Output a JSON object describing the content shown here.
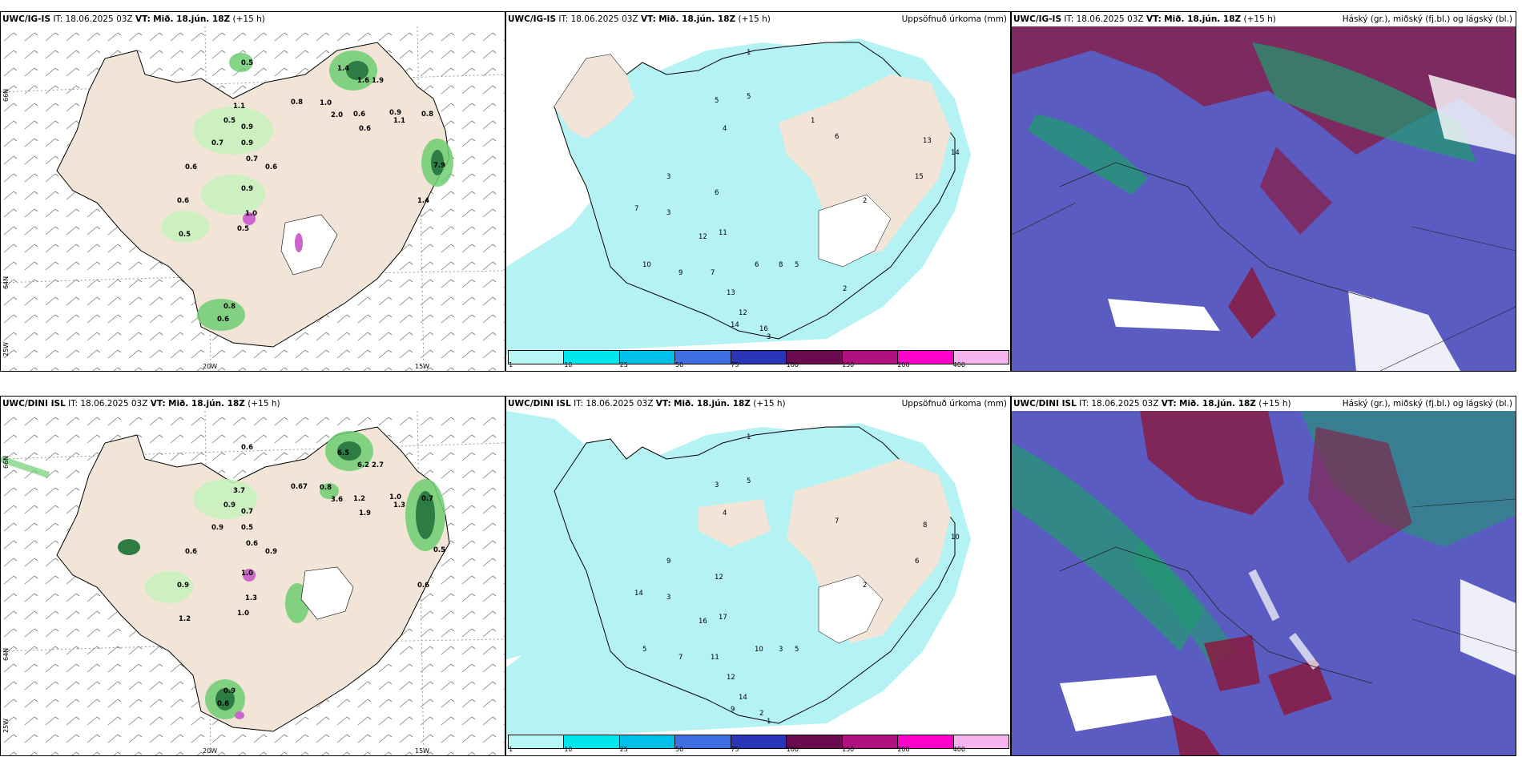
{
  "rows": [
    {
      "model": "UWC/IG-IS",
      "it_label": "IT:",
      "it_value": "18.06.2025 03Z",
      "vt_label": "VT:",
      "vt_value": "Mið. 18.jún. 18Z",
      "lead": "(+15 h)",
      "wind_values": [
        "0.5",
        "1.4",
        "1.6",
        "1.9",
        "1.0",
        "0.8",
        "1.1",
        "2.0",
        "0.6",
        "0.9",
        "0.8",
        "0.5",
        "0.6",
        "0.9",
        "1.1",
        "0.7",
        "0.9",
        "0.7",
        "0.6",
        "0.6",
        "7.9",
        "1.4",
        "0.6",
        "0.9",
        "1.0",
        "0.5",
        "0.5",
        "0.8",
        "0.6"
      ],
      "precip_values": [
        "1",
        "5",
        "5",
        "4",
        "6",
        "3",
        "6",
        "7",
        "12",
        "11",
        "13",
        "14",
        "15",
        "2",
        "3",
        "10",
        "9",
        "7",
        "6",
        "13",
        "12",
        "14",
        "16",
        "8",
        "5",
        "3",
        "2",
        "1"
      ],
      "lon_labels": [
        "20W",
        "15W"
      ],
      "lat_labels": [
        "66N",
        "64N",
        "25W"
      ]
    },
    {
      "model": "UWC/DINI ISL",
      "it_label": "IT:",
      "it_value": "18.06.2025 03Z",
      "vt_label": "VT:",
      "vt_value": "Mið. 18.jún. 18Z",
      "lead": "(+15 h)",
      "wind_values": [
        "0.6",
        "6.5",
        "6.2",
        "2.7",
        "0.8",
        "0.67",
        "3.7",
        "3.6",
        "1.2",
        "1.0",
        "0.7",
        "0.9",
        "1.9",
        "0.7",
        "1.3",
        "0.9",
        "0.5",
        "0.6",
        "0.9",
        "0.6",
        "0.5",
        "0.6",
        "0.9",
        "1.0",
        "1.3",
        "1.2",
        "1.0",
        "0.9",
        "0.6"
      ],
      "precip_values": [
        "1",
        "3",
        "5",
        "4",
        "7",
        "9",
        "12",
        "14",
        "16",
        "17",
        "8",
        "10",
        "6",
        "2",
        "3",
        "5",
        "7",
        "11",
        "10",
        "12",
        "14",
        "9",
        "2",
        "3",
        "5",
        "1"
      ],
      "lon_labels": [
        "20W",
        "15W"
      ],
      "lat_labels": [
        "66N",
        "64N",
        "25W"
      ]
    }
  ],
  "precip_title": "Uppsöfnuð úrkoma (mm)",
  "cloud_title": "Háský (gr.), miðský (fj.bl.) og lágský (bl.)",
  "colorbar": {
    "ticks": [
      "1",
      "10",
      "25",
      "50",
      "75",
      "100",
      "150",
      "200",
      "400"
    ],
    "colors": [
      "#b8f6f6",
      "#00e6ee",
      "#00bfe8",
      "#3f6fe0",
      "#2a35b8",
      "#6a0a4f",
      "#b0117f",
      "#ff00c8",
      "#f5b4f0"
    ]
  },
  "colors": {
    "land": "#f2e4d6",
    "precip": "#b4f2f4",
    "cloud_bg": "#5a5cc2",
    "high_cloud": "#8a1a40",
    "mid_cloud": "#1f9b6e",
    "green_light": "#c6f3bd",
    "green_mid": "#6fce73",
    "green_dark": "#0b6b2a"
  }
}
